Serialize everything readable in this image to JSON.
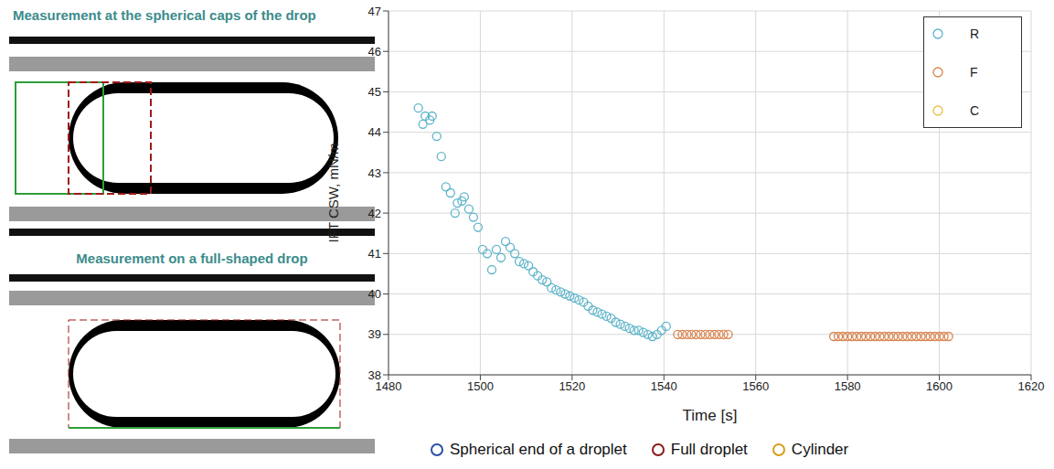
{
  "panels": {
    "top": {
      "title": "Measurement at the spherical caps of the drop"
    },
    "bottom": {
      "title": "Measurement on a full-shaped drop"
    }
  },
  "caption_legend": [
    {
      "label": "Spherical end of a droplet",
      "color": "#2a4fa8"
    },
    {
      "label": "Full droplet",
      "color": "#8b1a1a"
    },
    {
      "label": "Cylinder",
      "color": "#d4a017"
    }
  ],
  "chart_data": {
    "type": "scatter",
    "x_label": "Time [s]",
    "y_label": "IFT CSW, mN/m",
    "xlim": [
      1480,
      1620
    ],
    "xticks": [
      1480,
      1500,
      1520,
      1540,
      1560,
      1580,
      1600,
      1620
    ],
    "ylim": [
      38,
      47
    ],
    "yticks": [
      38,
      39,
      40,
      41,
      42,
      43,
      44,
      45,
      46,
      47
    ],
    "grid": true,
    "legend": "upper right",
    "marker": "circle",
    "series": [
      {
        "name": "R",
        "color": "#5fb4c9",
        "x": [
          1486.5,
          1487.5,
          1488,
          1489,
          1489.5,
          1490.5,
          1491.5,
          1492.5,
          1493.5,
          1494.5,
          1495,
          1496,
          1496.5,
          1497.5,
          1498.5,
          1499.5,
          1500.5,
          1501.5,
          1502.5,
          1503.5,
          1504.5,
          1505.5,
          1506.5,
          1507.5,
          1508.5,
          1509.5,
          1510.5,
          1511.5,
          1512.5,
          1513.5,
          1514.5,
          1515.5,
          1516.5,
          1517.5,
          1518.5,
          1519.5,
          1520.5,
          1521.5,
          1522.5,
          1523.5,
          1524.5,
          1525.5,
          1526.5,
          1527.5,
          1528.5,
          1529.5,
          1530.5,
          1531.5,
          1532.5,
          1533.5,
          1534.5,
          1535.5,
          1536.5,
          1537.5,
          1538.5,
          1539.5,
          1540.5
        ],
        "values": [
          44.6,
          44.2,
          44.4,
          44.3,
          44.4,
          43.9,
          43.4,
          42.65,
          42.5,
          42.0,
          42.25,
          42.3,
          42.4,
          42.1,
          41.9,
          41.65,
          41.1,
          41.0,
          40.6,
          41.1,
          40.9,
          41.3,
          41.15,
          41.0,
          40.8,
          40.75,
          40.7,
          40.55,
          40.45,
          40.35,
          40.3,
          40.15,
          40.1,
          40.05,
          40.0,
          39.95,
          39.9,
          39.85,
          39.8,
          39.7,
          39.6,
          39.55,
          39.5,
          39.45,
          39.4,
          39.3,
          39.25,
          39.2,
          39.15,
          39.1,
          39.1,
          39.05,
          39.0,
          38.95,
          39.0,
          39.1,
          39.2
        ]
      },
      {
        "name": "F",
        "color": "#d9844f",
        "x": [
          1543,
          1544,
          1545,
          1546,
          1547,
          1548,
          1549,
          1550,
          1551,
          1552,
          1553,
          1554,
          1577,
          1578,
          1579,
          1580,
          1581,
          1582,
          1583,
          1584,
          1585,
          1586,
          1587,
          1588,
          1589,
          1590,
          1591,
          1592,
          1593,
          1594,
          1595,
          1596,
          1597,
          1598,
          1599,
          1600,
          1601,
          1602
        ],
        "values": [
          39.0,
          39.0,
          39.0,
          39.0,
          39.0,
          39.0,
          39.0,
          39.0,
          39.0,
          39.0,
          39.0,
          39.0,
          38.95,
          38.95,
          38.95,
          38.95,
          38.95,
          38.95,
          38.95,
          38.95,
          38.95,
          38.95,
          38.95,
          38.95,
          38.95,
          38.95,
          38.95,
          38.95,
          38.95,
          38.95,
          38.95,
          38.95,
          38.95,
          38.95,
          38.95,
          38.95,
          38.95,
          38.95
        ]
      },
      {
        "name": "C",
        "color": "#e6c04a",
        "x": [],
        "values": []
      }
    ]
  }
}
